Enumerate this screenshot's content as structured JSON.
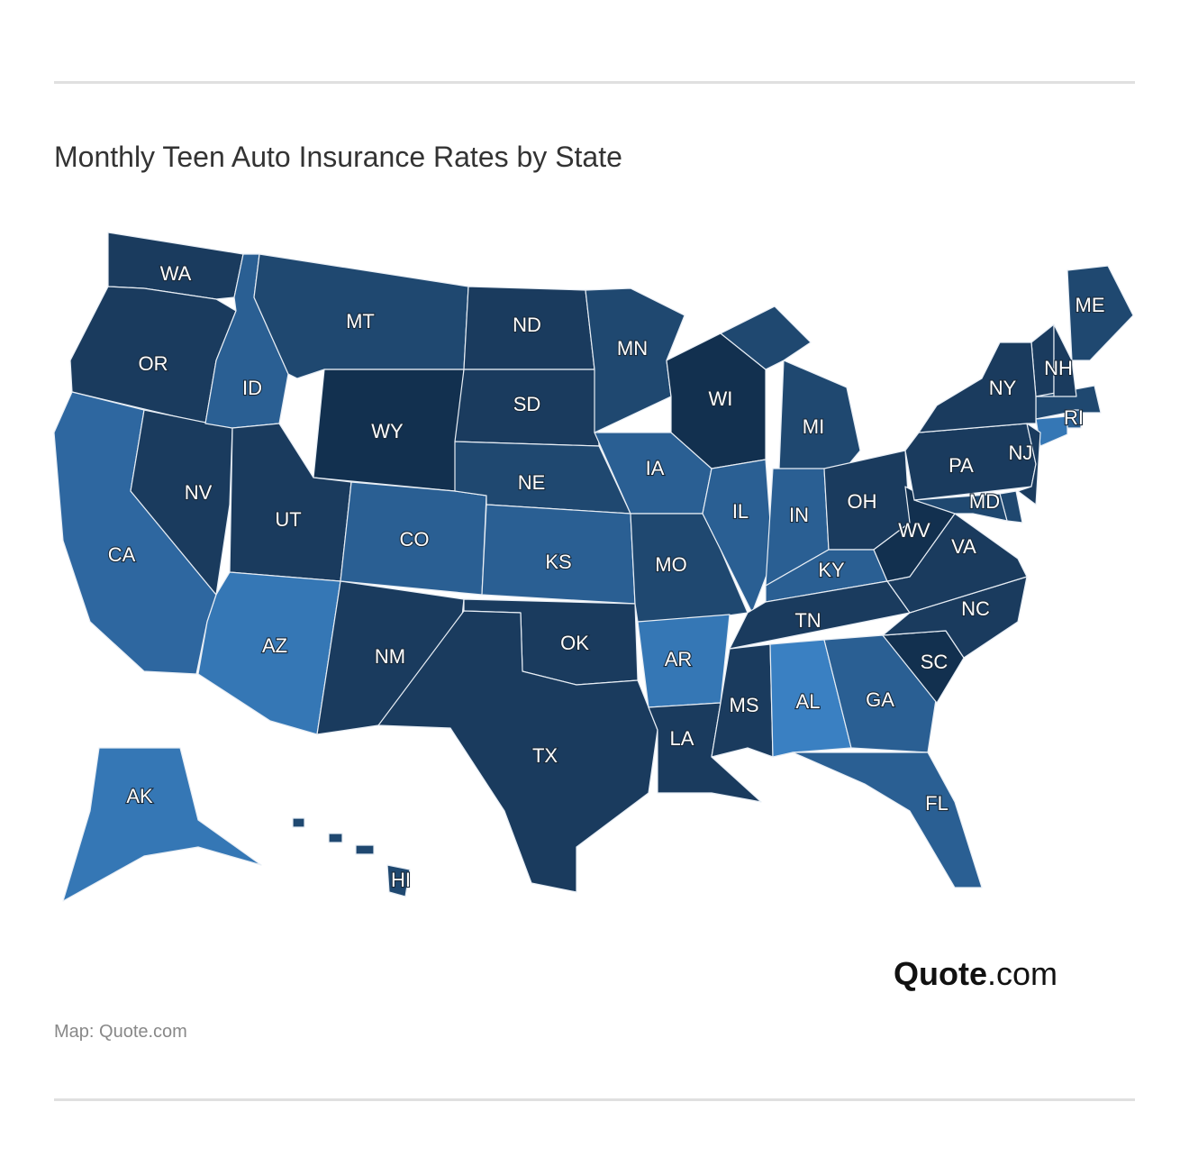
{
  "header": {
    "title": "Monthly Teen Auto Insurance Rates by State"
  },
  "map": {
    "states": [
      {
        "label": "WA",
        "color": "#1a3b5e"
      },
      {
        "label": "OR",
        "color": "#1a3b5e"
      },
      {
        "label": "CA",
        "color": "#2e67a0"
      },
      {
        "label": "NV",
        "color": "#1a3b5e"
      },
      {
        "label": "ID",
        "color": "#2a5f93"
      },
      {
        "label": "MT",
        "color": "#1f4870"
      },
      {
        "label": "WY",
        "color": "#12304f"
      },
      {
        "label": "UT",
        "color": "#1a3b5e"
      },
      {
        "label": "CO",
        "color": "#2a5f93"
      },
      {
        "label": "AZ",
        "color": "#3577b5"
      },
      {
        "label": "NM",
        "color": "#1a3b5e"
      },
      {
        "label": "ND",
        "color": "#1a3b5e"
      },
      {
        "label": "SD",
        "color": "#1a3b5e"
      },
      {
        "label": "NE",
        "color": "#1f4870"
      },
      {
        "label": "KS",
        "color": "#2a5f93"
      },
      {
        "label": "OK",
        "color": "#1a3b5e"
      },
      {
        "label": "TX",
        "color": "#1a3b5e"
      },
      {
        "label": "MN",
        "color": "#1f4870"
      },
      {
        "label": "IA",
        "color": "#2a5f93"
      },
      {
        "label": "MO",
        "color": "#1f4870"
      },
      {
        "label": "AR",
        "color": "#3577b5"
      },
      {
        "label": "LA",
        "color": "#1a3b5e"
      },
      {
        "label": "WI",
        "color": "#12304f"
      },
      {
        "label": "IL",
        "color": "#2a5f93"
      },
      {
        "label": "MI",
        "color": "#1f4870"
      },
      {
        "label": "IN",
        "color": "#2a5f93"
      },
      {
        "label": "OH",
        "color": "#1a3b5e"
      },
      {
        "label": "KY",
        "color": "#2a5f93"
      },
      {
        "label": "TN",
        "color": "#1a3b5e"
      },
      {
        "label": "MS",
        "color": "#1a3b5e"
      },
      {
        "label": "AL",
        "color": "#3a80c2"
      },
      {
        "label": "GA",
        "color": "#2a5f93"
      },
      {
        "label": "FL",
        "color": "#2a5f93"
      },
      {
        "label": "SC",
        "color": "#12304f"
      },
      {
        "label": "NC",
        "color": "#1a3b5e"
      },
      {
        "label": "VA",
        "color": "#1a3b5e"
      },
      {
        "label": "WV",
        "color": "#12304f"
      },
      {
        "label": "PA",
        "color": "#1a3b5e"
      },
      {
        "label": "NY",
        "color": "#1a3b5e"
      },
      {
        "label": "NJ",
        "color": "#1a3b5e"
      },
      {
        "label": "MD",
        "color": "#1f4870"
      },
      {
        "label": "ME",
        "color": "#1f4870"
      },
      {
        "label": "NH",
        "color": "#1a3b5e"
      },
      {
        "label": "RI",
        "color": "#2a5f93"
      },
      {
        "label": "AK",
        "color": "#3577b5"
      },
      {
        "label": "HI",
        "color": "#1f4870"
      }
    ]
  },
  "logo": {
    "name": "Quote",
    "suffix": ".com"
  },
  "source": "Map: Quote.com"
}
